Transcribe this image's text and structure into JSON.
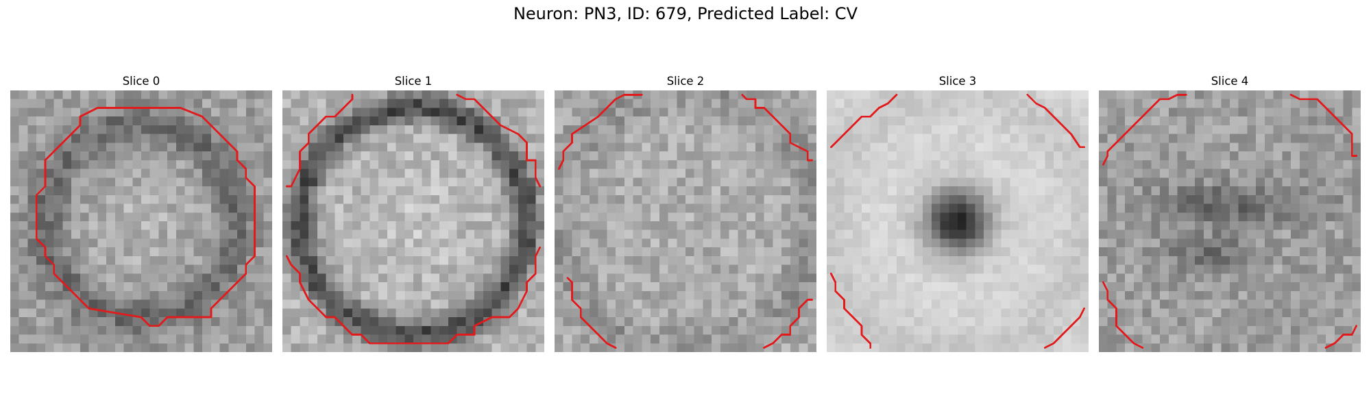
{
  "figure": {
    "title": "Neuron: PN3, ID: 679, Predicted Label: CV"
  },
  "panels": [
    {
      "title": "Slice 0",
      "contour_color": "#e31a1c"
    },
    {
      "title": "Slice 1",
      "contour_color": "#e31a1c"
    },
    {
      "title": "Slice 2",
      "contour_color": "#e31a1c"
    },
    {
      "title": "Slice 3",
      "contour_color": "#e31a1c"
    },
    {
      "title": "Slice 4",
      "contour_color": "#e31a1c"
    }
  ],
  "image_style": {
    "colormap": "grayscale"
  }
}
